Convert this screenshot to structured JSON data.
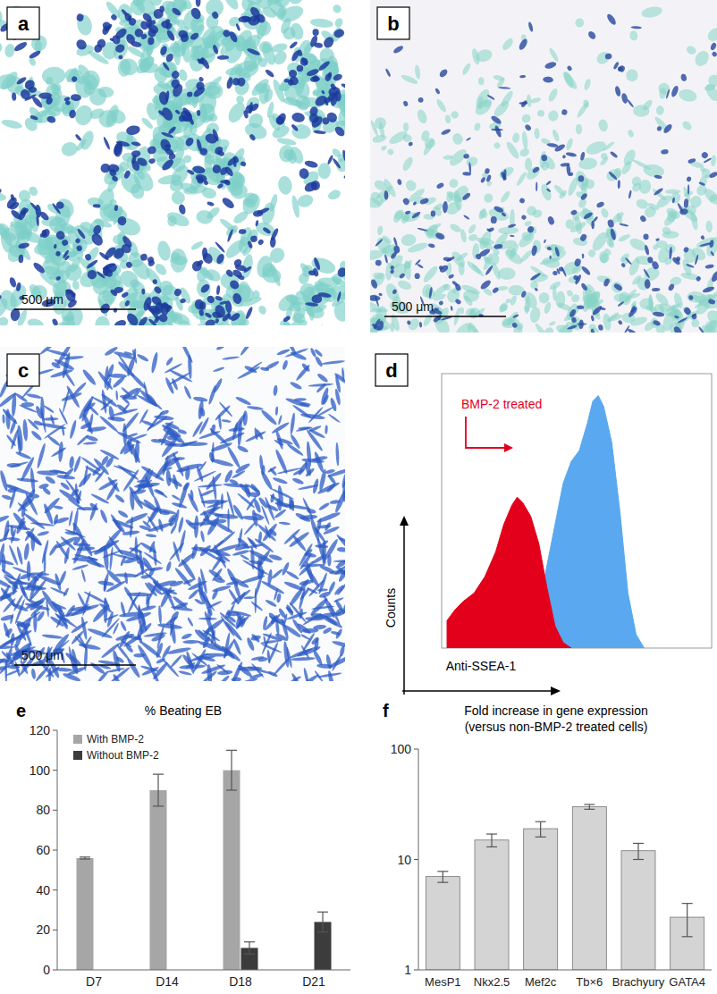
{
  "panel_labels": [
    "a",
    "b",
    "c",
    "d",
    "e",
    "f"
  ],
  "scale_bars": [
    "500 μm",
    "500 μm",
    "500 μm"
  ],
  "chart_data": [
    {
      "type": "area",
      "x_label": "Anti-SSEA-1",
      "y_label": "Counts",
      "annotations": [
        {
          "text": "BMP-2 treated",
          "color": "#e3001b"
        }
      ],
      "xlim": [
        0,
        100
      ],
      "ylim": [
        0,
        100
      ],
      "tick_labels": false,
      "series": [
        {
          "color": "#5aa8ef",
          "x": [
            20,
            28,
            33,
            38,
            42,
            45,
            48,
            51,
            54,
            56,
            58,
            60,
            63,
            66,
            69,
            72,
            75
          ],
          "values": [
            0,
            3,
            10,
            25,
            45,
            60,
            68,
            72,
            82,
            90,
            92,
            88,
            75,
            50,
            20,
            5,
            0
          ]
        },
        {
          "color": "#e3001b",
          "x": [
            2,
            5,
            8,
            12,
            16,
            20,
            23,
            26,
            28,
            30,
            33,
            36,
            39,
            42,
            45,
            48
          ],
          "values": [
            10,
            14,
            17,
            20,
            26,
            35,
            45,
            52,
            55,
            53,
            48,
            38,
            22,
            8,
            2,
            0
          ]
        }
      ]
    },
    {
      "type": "bar",
      "title": "% Beating EB",
      "categories": [
        "D7",
        "D14",
        "D18",
        "D21"
      ],
      "series": [
        {
          "name": "With BMP-2",
          "color": "#a6a6a6",
          "values": [
            56,
            90,
            100,
            null
          ],
          "errors": [
            0.5,
            8,
            10,
            null
          ]
        },
        {
          "name": "Without BMP-2",
          "color": "#3c3c3c",
          "values": [
            null,
            null,
            11,
            24
          ],
          "errors": [
            null,
            null,
            3,
            5
          ]
        }
      ],
      "ylim": [
        0,
        120
      ],
      "yticks": [
        0,
        20,
        40,
        60,
        80,
        100,
        120
      ],
      "grid": false,
      "legend": "top-left"
    },
    {
      "type": "bar",
      "title": "Fold increase in gene expression",
      "subtitle": "(versus non-BMP-2 treated cells)",
      "categories": [
        "MesP1",
        "Nkx2.5",
        "Mef2c",
        "Tb×6",
        "Brachyury",
        "GATA4"
      ],
      "values": [
        7,
        15,
        19,
        30,
        12,
        3
      ],
      "errors": [
        0.8,
        2,
        3,
        1.5,
        2,
        1
      ],
      "color": "#d4d4d4",
      "log": "y",
      "ylim": [
        1,
        100
      ],
      "yticks": [
        1,
        10,
        100
      ],
      "grid": false
    }
  ]
}
